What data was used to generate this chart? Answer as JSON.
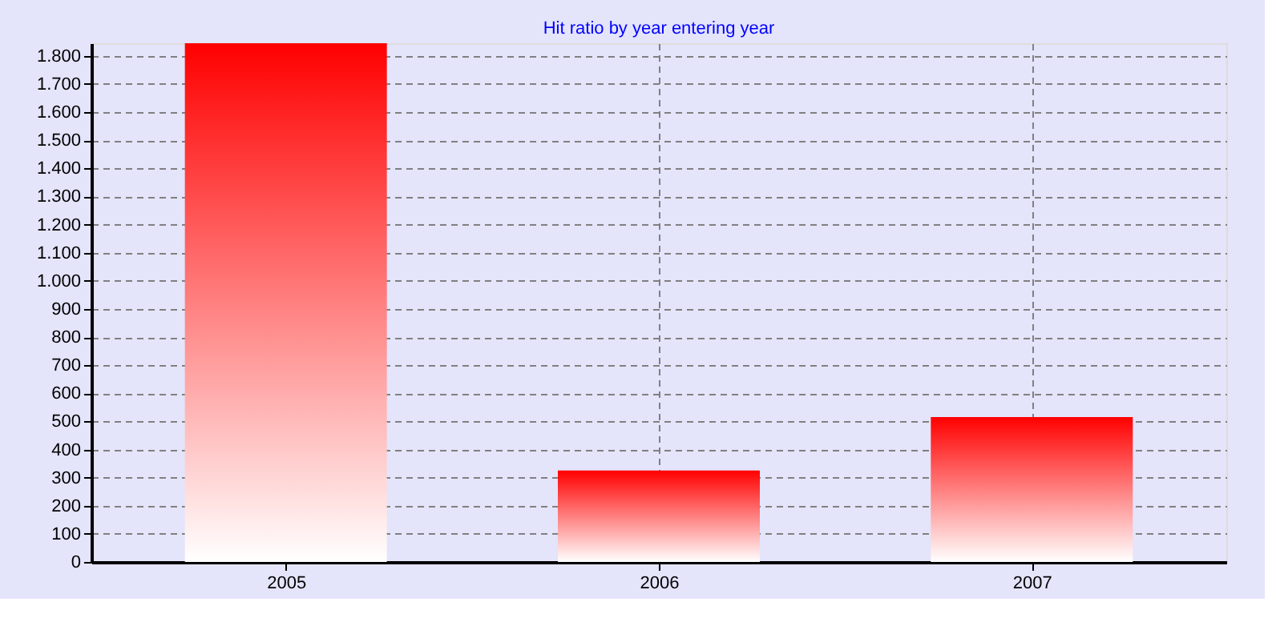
{
  "chart_data": {
    "type": "bar",
    "title": "Hit ratio by year entering year",
    "categories": [
      "2005",
      "2006",
      "2007"
    ],
    "series": [
      {
        "color": "#ff0000",
        "values": [
          1845,
          325,
          515
        ]
      }
    ],
    "ylim": [
      0,
      1845
    ],
    "yticks": [
      0,
      100,
      200,
      300,
      400,
      500,
      600,
      700,
      800,
      900,
      {
        "value": 1000,
        "label": "1.000"
      },
      {
        "value": 1100,
        "label": "1.100"
      },
      {
        "value": 1200,
        "label": "1.200"
      },
      {
        "value": 1300,
        "label": "1.300"
      },
      {
        "value": 1400,
        "label": "1.400"
      },
      {
        "value": 1500,
        "label": "1.500"
      },
      {
        "value": 1600,
        "label": "1.600"
      },
      {
        "value": 1700,
        "label": "1.700"
      },
      {
        "value": 1800,
        "label": "1.800"
      }
    ],
    "grid": true
  }
}
